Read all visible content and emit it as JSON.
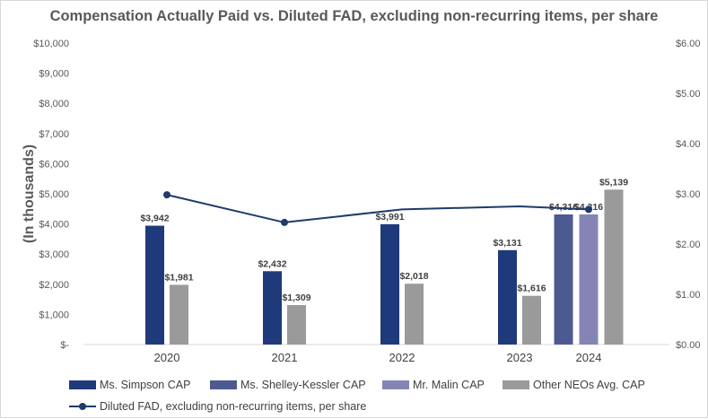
{
  "chart_data": {
    "type": "bar+line",
    "title": "Compensation Actually Paid vs. Diluted FAD, excluding non-recurring items, per share",
    "ylabel": "(In thousands)",
    "categories": [
      "2020",
      "2021",
      "2022",
      "2023",
      "2024"
    ],
    "ylim": [
      0,
      10000
    ],
    "y2lim": [
      0,
      6
    ],
    "left_ticks": [
      "$-",
      "$1,000",
      "$2,000",
      "$3,000",
      "$4,000",
      "$5,000",
      "$6,000",
      "$7,000",
      "$8,000",
      "$9,000",
      "$10,000"
    ],
    "right_ticks": [
      "$0.00",
      "$1.00",
      "$2.00",
      "$3.00",
      "$4.00",
      "$5.00",
      "$6.00"
    ],
    "series": [
      {
        "name": "Ms. Simpson CAP",
        "color": "#1f3a7a",
        "values": [
          3942,
          2432,
          3991,
          3131,
          null
        ],
        "labels": [
          "$3,942",
          "$2,432",
          "$3,991",
          "$3,131",
          ""
        ]
      },
      {
        "name": "Ms. Shelley-Kessler CAP",
        "color": "#4d5a91",
        "values": [
          null,
          null,
          null,
          null,
          4316
        ],
        "labels": [
          "",
          "",
          "",
          "",
          "$4,316"
        ]
      },
      {
        "name": "Mr. Malin CAP",
        "color": "#8585b5",
        "values": [
          null,
          null,
          null,
          null,
          4316
        ],
        "labels": [
          "",
          "",
          "",
          "",
          "$4,316"
        ]
      },
      {
        "name": "Other NEOs Avg. CAP",
        "color": "#9a9a9a",
        "values": [
          1981,
          1309,
          2018,
          1616,
          5139
        ],
        "labels": [
          "$1,981",
          "$1,309",
          "$2,018",
          "$1,616",
          "$5,139"
        ]
      }
    ],
    "line_series": {
      "name": "Diluted FAD, excluding non-recurring items, per share",
      "color": "#1f3a6b",
      "axis": "right",
      "x": [
        2020,
        2021,
        2022,
        2023,
        2024
      ],
      "values": [
        2.98,
        2.43,
        2.69,
        2.75,
        2.69
      ],
      "markers_at": [
        2020,
        2021,
        2024
      ]
    }
  }
}
